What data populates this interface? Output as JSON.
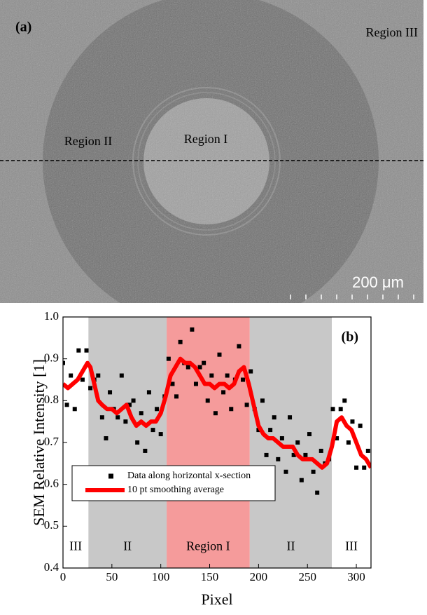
{
  "image_panel": {
    "label": "(a)",
    "region_labels": [
      "Region III",
      "Region II",
      "Region I"
    ],
    "scale_bar": "200 μm"
  },
  "chart_data": {
    "type": "scatter",
    "annotation": "(b)",
    "xlabel": "Pixel",
    "ylabel": "SEM Relative Intensity [1]",
    "xlim": [
      0,
      315
    ],
    "ylim": [
      0.4,
      1
    ],
    "xticks": [
      0,
      50,
      100,
      150,
      200,
      250,
      300
    ],
    "yticks": [
      0.4,
      0.5,
      0.6,
      0.7,
      0.8,
      0.9,
      {
        "value": 1,
        "label": "1.0"
      }
    ],
    "regions": [
      {
        "label": "III",
        "start": 0,
        "end": 26,
        "color": "#ffffff"
      },
      {
        "label": "II",
        "start": 26,
        "end": 106,
        "color": "#c8c8c8"
      },
      {
        "label": "Region I",
        "start": 106,
        "end": 191,
        "color": "#f59b9b"
      },
      {
        "label": "II",
        "start": 191,
        "end": 275,
        "color": "#c8c8c8"
      },
      {
        "label": "III",
        "start": 275,
        "end": 315,
        "color": "#ffffff"
      }
    ],
    "series": [
      {
        "name": "Data along horizontal x-section",
        "color": "#000000",
        "mode": "markers",
        "x": [
          0,
          4,
          8,
          12,
          16,
          20,
          24,
          28,
          32,
          36,
          40,
          44,
          48,
          52,
          56,
          60,
          64,
          68,
          72,
          76,
          80,
          84,
          88,
          92,
          96,
          100,
          104,
          108,
          112,
          116,
          120,
          124,
          128,
          132,
          136,
          140,
          144,
          148,
          152,
          156,
          160,
          164,
          168,
          172,
          176,
          180,
          184,
          188,
          192,
          196,
          200,
          204,
          208,
          212,
          216,
          220,
          224,
          228,
          232,
          236,
          240,
          244,
          248,
          252,
          256,
          260,
          264,
          268,
          272,
          276,
          280,
          284,
          288,
          292,
          296,
          300,
          304,
          308,
          312
        ],
        "values": [
          0.89,
          0.79,
          0.86,
          0.78,
          0.92,
          0.85,
          0.92,
          0.83,
          0.85,
          0.86,
          0.76,
          0.71,
          0.82,
          0.78,
          0.76,
          0.86,
          0.75,
          0.79,
          0.8,
          0.7,
          0.77,
          0.68,
          0.82,
          0.73,
          0.78,
          0.72,
          0.81,
          0.9,
          0.84,
          0.81,
          0.94,
          0.89,
          0.88,
          0.97,
          0.84,
          0.88,
          0.89,
          0.8,
          0.86,
          0.77,
          0.91,
          0.82,
          0.86,
          0.78,
          0.85,
          0.93,
          0.85,
          0.79,
          0.87,
          0.78,
          0.73,
          0.8,
          0.67,
          0.73,
          0.76,
          0.66,
          0.71,
          0.63,
          0.76,
          0.67,
          0.7,
          0.61,
          0.67,
          0.72,
          0.63,
          0.58,
          0.68,
          0.65,
          0.66,
          0.78,
          0.71,
          0.78,
          0.8,
          0.7,
          0.75,
          0.64,
          0.74,
          0.64,
          0.68
        ]
      },
      {
        "name": "10 pt smoothing average",
        "color": "#ff0000",
        "mode": "line",
        "x": [
          0,
          5,
          10,
          15,
          20,
          25,
          28,
          32,
          36,
          40,
          45,
          50,
          55,
          60,
          65,
          70,
          75,
          80,
          85,
          90,
          95,
          100,
          105,
          110,
          115,
          120,
          125,
          130,
          135,
          140,
          145,
          150,
          155,
          160,
          165,
          170,
          175,
          180,
          185,
          190,
          195,
          200,
          205,
          210,
          215,
          220,
          225,
          230,
          235,
          240,
          245,
          250,
          255,
          260,
          265,
          270,
          275,
          280,
          285,
          290,
          295,
          300,
          305,
          310,
          315
        ],
        "values": [
          0.84,
          0.83,
          0.84,
          0.85,
          0.87,
          0.89,
          0.88,
          0.84,
          0.8,
          0.79,
          0.78,
          0.78,
          0.77,
          0.78,
          0.79,
          0.76,
          0.74,
          0.75,
          0.74,
          0.75,
          0.75,
          0.77,
          0.81,
          0.86,
          0.88,
          0.9,
          0.89,
          0.89,
          0.88,
          0.86,
          0.84,
          0.84,
          0.83,
          0.84,
          0.84,
          0.83,
          0.84,
          0.87,
          0.88,
          0.84,
          0.79,
          0.74,
          0.72,
          0.71,
          0.71,
          0.7,
          0.69,
          0.69,
          0.69,
          0.67,
          0.66,
          0.66,
          0.66,
          0.65,
          0.64,
          0.65,
          0.69,
          0.75,
          0.76,
          0.74,
          0.73,
          0.7,
          0.67,
          0.66,
          0.64
        ]
      }
    ]
  }
}
